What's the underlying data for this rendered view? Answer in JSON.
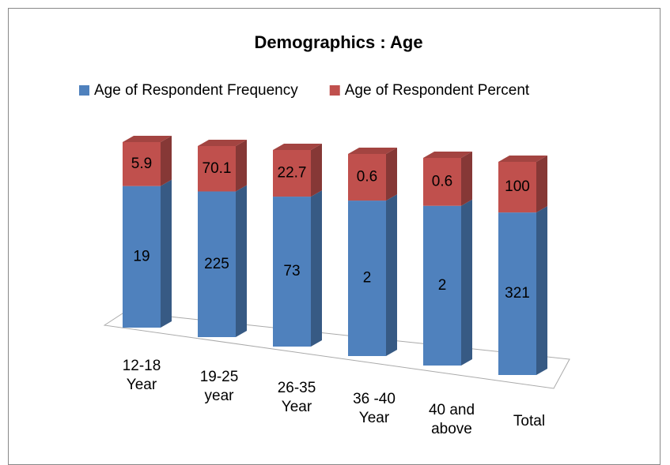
{
  "chart_data": {
    "type": "bar",
    "stacked": "percent",
    "title": "Demographics : Age",
    "categories": [
      "12-18\nYear",
      "19-25\nyear",
      "26-35\nYear",
      "36 -40\nYear",
      "40 and\nabove",
      "Total"
    ],
    "series": [
      {
        "name": "Age of Respondent Frequency",
        "color": "#4f81bd",
        "values": [
          19,
          225,
          73,
          2,
          2,
          321
        ]
      },
      {
        "name": "Age of Respondent Percent",
        "color": "#c0504d",
        "values": [
          5.9,
          70.1,
          22.7,
          0.6,
          0.6,
          100
        ]
      }
    ]
  }
}
